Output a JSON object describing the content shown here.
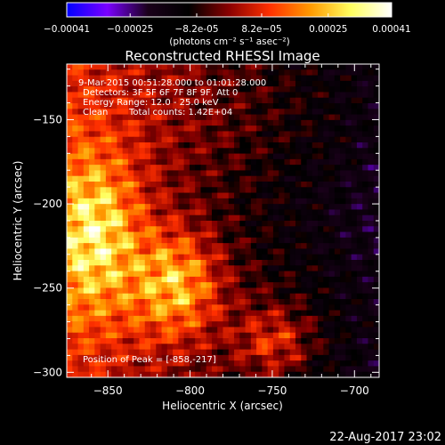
{
  "colorbar": {
    "ticks": [
      "-0.00041",
      "-0.00025",
      "-8.2e-05",
      "8.2e-05",
      "0.00025",
      "0.00041"
    ],
    "range": [
      -0.00041,
      0.00041
    ],
    "unit_label": "(photons cm⁻² s⁻¹ asec⁻²)",
    "colors": [
      "#0000ff",
      "#7a00ff",
      "#1a001a",
      "#000000",
      "#8a0000",
      "#ff3000",
      "#ff9a00",
      "#ffff60",
      "#ffffff"
    ]
  },
  "chart_data": {
    "type": "heatmap",
    "title": "Reconstructed RHESSI Image",
    "xlabel": "Heliocentric X (arcsec)",
    "ylabel": "Heliocentric Y (arcsec)",
    "xlim": [
      -875,
      -685
    ],
    "ylim": [
      -303,
      -117
    ],
    "xticks": [
      -850,
      -800,
      -750,
      -700
    ],
    "yticks": [
      -150,
      -200,
      -250,
      -300
    ],
    "xtick_labels": [
      "−850",
      "−800",
      "−750",
      "−700"
    ],
    "ytick_labels": [
      "−150",
      "−200",
      "−250",
      "−300"
    ],
    "annotations": {
      "time": "9-Mar-2015 00:51:28.000 to 01:01:28.000",
      "detectors": "Detectors: 3F 5F 6F 7F 8F 9F, Att 0",
      "energy": "Energy Range: 12.0 - 25.0 keV",
      "clean": "Clean",
      "counts": "Total counts: 1.42E+04",
      "peak": "Position of Peak = [-858,-217]"
    },
    "peak": [
      -858,
      -217
    ]
  },
  "footer": {
    "timestamp": "22-Aug-2017 23:02"
  }
}
